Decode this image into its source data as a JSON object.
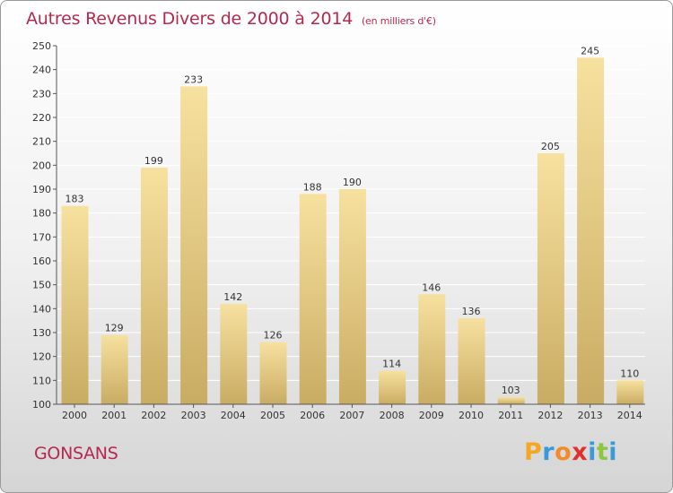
{
  "chart_data": {
    "type": "bar",
    "title": "Autres Revenus Divers de 2000 à 2014",
    "subtitle": "(en milliers d'€)",
    "categories": [
      "2000",
      "2001",
      "2002",
      "2003",
      "2004",
      "2005",
      "2006",
      "2007",
      "2008",
      "2009",
      "2010",
      "2011",
      "2012",
      "2013",
      "2014"
    ],
    "values": [
      183,
      129,
      199,
      233,
      142,
      126,
      188,
      190,
      114,
      146,
      136,
      103,
      205,
      245,
      110
    ],
    "ylim": [
      100,
      250
    ],
    "yticks": [
      100,
      110,
      120,
      130,
      140,
      150,
      160,
      170,
      180,
      190,
      200,
      210,
      220,
      230,
      240,
      250
    ],
    "grid": true,
    "bar_color_top": "#f7e19f",
    "bar_color_bottom": "#c9ac63"
  },
  "commune": "GONSANS",
  "logo": {
    "letters": [
      "P",
      "r",
      "o",
      "x",
      "i",
      "t",
      "i"
    ],
    "colors": [
      "#f5a623",
      "#3a9ad9",
      "#f08c2a",
      "#e0312f",
      "#3a9ad9",
      "#8dc63f",
      "#3a9ad9"
    ]
  },
  "colors": {
    "title": "#b5294f"
  }
}
